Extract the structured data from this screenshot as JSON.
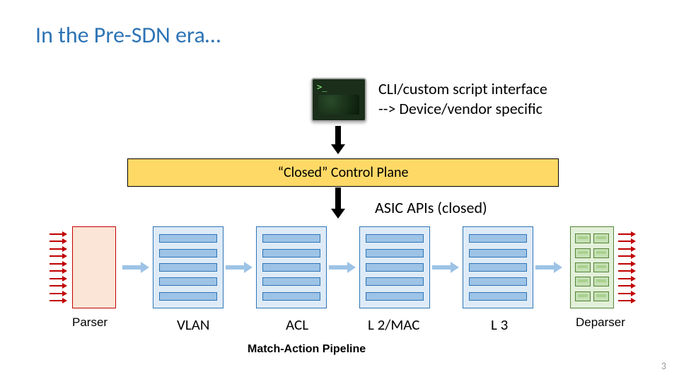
{
  "title": "In the Pre-SDN era…",
  "terminal": {
    "name": "cli-terminal"
  },
  "cli_text": {
    "line1": "CLI/custom script interface",
    "line2": "--> Device/vendor specific"
  },
  "control_plane": {
    "label": "“Closed” Control Plane",
    "bg": "#ffd966",
    "border": "#000000"
  },
  "asic_label": "ASIC APIs (closed)",
  "arrows": {
    "down_color": "#000000",
    "stage_arrow_color": "#9dc3e6",
    "io_arrow_color": "#c00000"
  },
  "pipeline": {
    "input_arrow_count": 10,
    "output_arrow_count": 10,
    "parser": {
      "bg": "#fbe5d6",
      "border": "#c00000"
    },
    "deparser": {
      "bg": "#e2f0d9",
      "border": "#548235",
      "rows": 5,
      "cols_per_row": 2
    },
    "stage_style": {
      "bg": "#deebf7",
      "border": "#2e75b6",
      "bar_fill": "#9dc3e6",
      "rows": 5
    },
    "stage_count": 4
  },
  "labels": {
    "parser": "Parser",
    "stages": [
      "VLAN",
      "ACL",
      "L 2/MAC",
      "L 3"
    ],
    "deparser": "Deparser",
    "caption": "Match-Action Pipeline"
  },
  "page_number": "3",
  "colors": {
    "title": "#2e74b5",
    "text": "#000000",
    "pagenum": "#9a9a9a"
  }
}
